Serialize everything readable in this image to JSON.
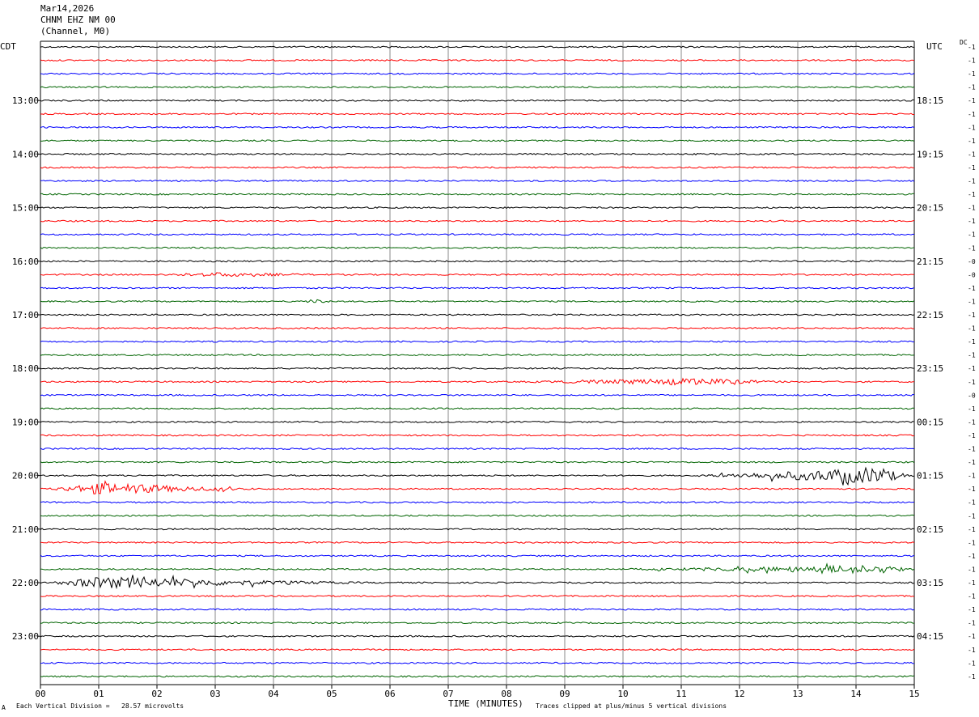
{
  "header": {
    "date": "Mar14,2026",
    "station": "CHNM EHZ NM 00",
    "units": "(Channel, M0)"
  },
  "left_zone": "CDT",
  "right_zone": "UTC",
  "dc_label": "DC",
  "footer": {
    "scale_text": "Each Vertical Division =   28.57 microvolts",
    "xlabel": "TIME (MINUTES)",
    "clip_text": "Traces clipped at plus/minus 5 vertical divisions",
    "corner_mark": "A"
  },
  "colors": {
    "black": "#000000",
    "red": "#ff0000",
    "blue": "#0000ff",
    "green": "#006400",
    "grid": "#888888"
  },
  "chart_data": {
    "type": "line",
    "xlabel": "TIME (MINUTES)",
    "xlim": [
      0,
      15
    ],
    "x_ticks": [
      "00",
      "01",
      "02",
      "03",
      "04",
      "05",
      "06",
      "07",
      "08",
      "09",
      "10",
      "11",
      "12",
      "13",
      "14",
      "15"
    ],
    "row_count": 48,
    "row_colors": [
      "black",
      "red",
      "blue",
      "green"
    ],
    "left_hour_labels": [
      {
        "row": 4,
        "label": "13:00"
      },
      {
        "row": 8,
        "label": "14:00"
      },
      {
        "row": 12,
        "label": "15:00"
      },
      {
        "row": 16,
        "label": "16:00"
      },
      {
        "row": 20,
        "label": "17:00"
      },
      {
        "row": 24,
        "label": "18:00"
      },
      {
        "row": 28,
        "label": "19:00"
      },
      {
        "row": 32,
        "label": "20:00"
      },
      {
        "row": 36,
        "label": "21:00"
      },
      {
        "row": 40,
        "label": "22:00"
      },
      {
        "row": 44,
        "label": "23:00"
      }
    ],
    "right_hour_labels": [
      {
        "row": 4,
        "label": "18:15"
      },
      {
        "row": 8,
        "label": "19:15"
      },
      {
        "row": 12,
        "label": "20:15"
      },
      {
        "row": 16,
        "label": "21:15"
      },
      {
        "row": 20,
        "label": "22:15"
      },
      {
        "row": 24,
        "label": "23:15"
      },
      {
        "row": 28,
        "label": "00:15"
      },
      {
        "row": 32,
        "label": "01:15"
      },
      {
        "row": 36,
        "label": "02:15"
      },
      {
        "row": 40,
        "label": "03:15"
      },
      {
        "row": 44,
        "label": "04:15"
      }
    ],
    "dc_offsets": [
      "-1",
      "-1",
      "-1",
      "-1",
      "-1",
      "-1",
      "-1",
      "-1",
      "-1",
      "-1",
      "-1",
      "-1",
      "-1",
      "-1",
      "-1",
      "-1",
      "-0",
      "-0",
      "-1",
      "-1",
      "-1",
      "-1",
      "-1",
      "-1",
      "-1",
      "-1",
      "-0",
      "-1",
      "-1",
      "-1",
      "-1",
      "-1",
      "-1",
      "-1",
      "-1",
      "-1",
      "-1",
      "-1",
      "-1",
      "-1",
      "-1",
      "-1",
      "-1",
      "-1",
      "-1",
      "-1",
      "-1",
      "-1"
    ],
    "events": [
      {
        "row": 17,
        "start": 1.9,
        "end": 5.0,
        "peak": 3.0,
        "amp": 3
      },
      {
        "row": 19,
        "start": 4.4,
        "end": 5.0,
        "peak": 4.7,
        "amp": 3
      },
      {
        "row": 25,
        "start": 8.0,
        "end": 13.0,
        "peak": 11.2,
        "amp": 5
      },
      {
        "row": 32,
        "start": 11.0,
        "end": 15.0,
        "peak": 14.4,
        "amp": 12
      },
      {
        "row": 33,
        "start": 0.0,
        "end": 4.0,
        "peak": 1.0,
        "amp": 8
      },
      {
        "row": 39,
        "start": 9.5,
        "end": 15.0,
        "peak": 14.5,
        "amp": 6
      },
      {
        "row": 40,
        "start": 0.0,
        "end": 6.0,
        "peak": 1.0,
        "amp": 8
      }
    ]
  }
}
